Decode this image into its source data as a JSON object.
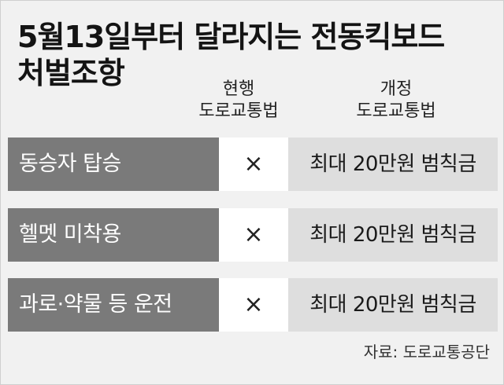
{
  "title": {
    "line1": "5월13일부터 달라지는 전동킥보드",
    "line2": "처벌조항"
  },
  "columns": {
    "current": [
      "현행",
      "도로교통법"
    ],
    "revised": [
      "개정",
      "도로교통법"
    ]
  },
  "rows": [
    {
      "label": "동승자 탑승",
      "current": "×",
      "revised": "최대 20만원 범칙금"
    },
    {
      "label": "헬멧 미착용",
      "current": "×",
      "revised": "최대 20만원 범칙금"
    },
    {
      "label": "과로·약물 등 운전",
      "current": "×",
      "revised": "최대 20만원 범칙금"
    }
  ],
  "source": "자료: 도로교통공단",
  "colors": {
    "label_bg": "#7a7a7a",
    "current_bg": "#ffffff",
    "revised_bg": "#dedede",
    "page_bg": "#f1f1f1"
  }
}
